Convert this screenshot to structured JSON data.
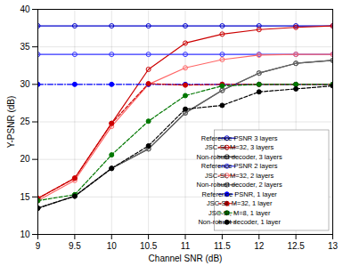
{
  "chart_data": {
    "type": "line",
    "x": [
      9,
      9.5,
      10,
      10.5,
      11,
      11.5,
      12,
      12.5,
      13
    ],
    "series": [
      {
        "name": "Reference PSNR 3 layers",
        "color": "#0000cc",
        "marker": "circle_open",
        "line_style": "solid",
        "values": [
          37.8,
          37.8,
          37.8,
          37.8,
          37.8,
          37.8,
          37.8,
          37.8,
          37.8
        ]
      },
      {
        "name": "JSC-SI, M=32, 3 layers",
        "color": "#cc0000",
        "marker": "circle_open",
        "line_style": "solid",
        "values": [
          14.8,
          17.5,
          24.8,
          32.0,
          35.5,
          36.7,
          37.3,
          37.6,
          37.8
        ]
      },
      {
        "name": "Non-robust decoder, 3 layers",
        "color": "#333333",
        "marker": "circle_open",
        "line_style": "solid",
        "values": [
          13.5,
          15.1,
          18.8,
          21.4,
          26.2,
          29.2,
          31.5,
          32.8,
          33.2
        ]
      },
      {
        "name": "Reference PSNR 2 layers",
        "color": "#3333ff",
        "marker": "circle_open",
        "line_style": "solid",
        "values": [
          34.0,
          34.0,
          34.0,
          34.0,
          34.0,
          34.0,
          34.0,
          34.0,
          34.0
        ]
      },
      {
        "name": "JSC-SI, M=32, 2 layers",
        "color": "#ff6666",
        "marker": "circle_open",
        "line_style": "solid",
        "values": [
          14.5,
          17.2,
          24.4,
          30.0,
          32.2,
          33.3,
          33.9,
          34.0,
          34.0
        ]
      },
      {
        "name": "Non-robust decoder, 2 layers",
        "color": "#666666",
        "marker": "circle_open",
        "line_style": "solid",
        "values": [
          13.5,
          15.1,
          18.8,
          21.4,
          26.2,
          29.2,
          31.5,
          32.8,
          33.2
        ]
      },
      {
        "name": "Reference PSNR, 1 layer",
        "color": "#0000ff",
        "marker": "circle",
        "line_style": "dashdot",
        "values": [
          30.0,
          30.0,
          30.0,
          30.0,
          30.0,
          30.0,
          30.0,
          30.0,
          30.0
        ]
      },
      {
        "name": "JSC-SI, M=32, 1 layer",
        "color": "#cc0000",
        "marker": "circle",
        "line_style": "dashed",
        "values": [
          14.8,
          17.5,
          24.8,
          30.1,
          29.9,
          30.0,
          30.0,
          30.0,
          30.0
        ]
      },
      {
        "name": "JSC-SI, M=8, 1 layer",
        "color": "#007700",
        "marker": "circle",
        "line_style": "dashed",
        "values": [
          14.5,
          15.3,
          20.6,
          25.1,
          28.5,
          29.8,
          30.0,
          30.0,
          30.0
        ]
      },
      {
        "name": "Non-robust decoder, 1 layer",
        "color": "#000000",
        "marker": "circle",
        "line_style": "dashed",
        "values": [
          13.5,
          15.1,
          18.8,
          21.8,
          26.7,
          27.2,
          29.0,
          29.4,
          29.8
        ]
      }
    ],
    "xlim": [
      9,
      13
    ],
    "ylim": [
      10,
      40
    ],
    "xticks": [
      9,
      9.5,
      10,
      10.5,
      11,
      11.5,
      12,
      12.5,
      13
    ],
    "yticks": [
      10,
      15,
      20,
      25,
      30,
      35,
      40
    ],
    "xlabel": "Channel SNR (dB)",
    "ylabel": "Y-PSNR (dB)",
    "grid": true,
    "legend": "lower right"
  }
}
